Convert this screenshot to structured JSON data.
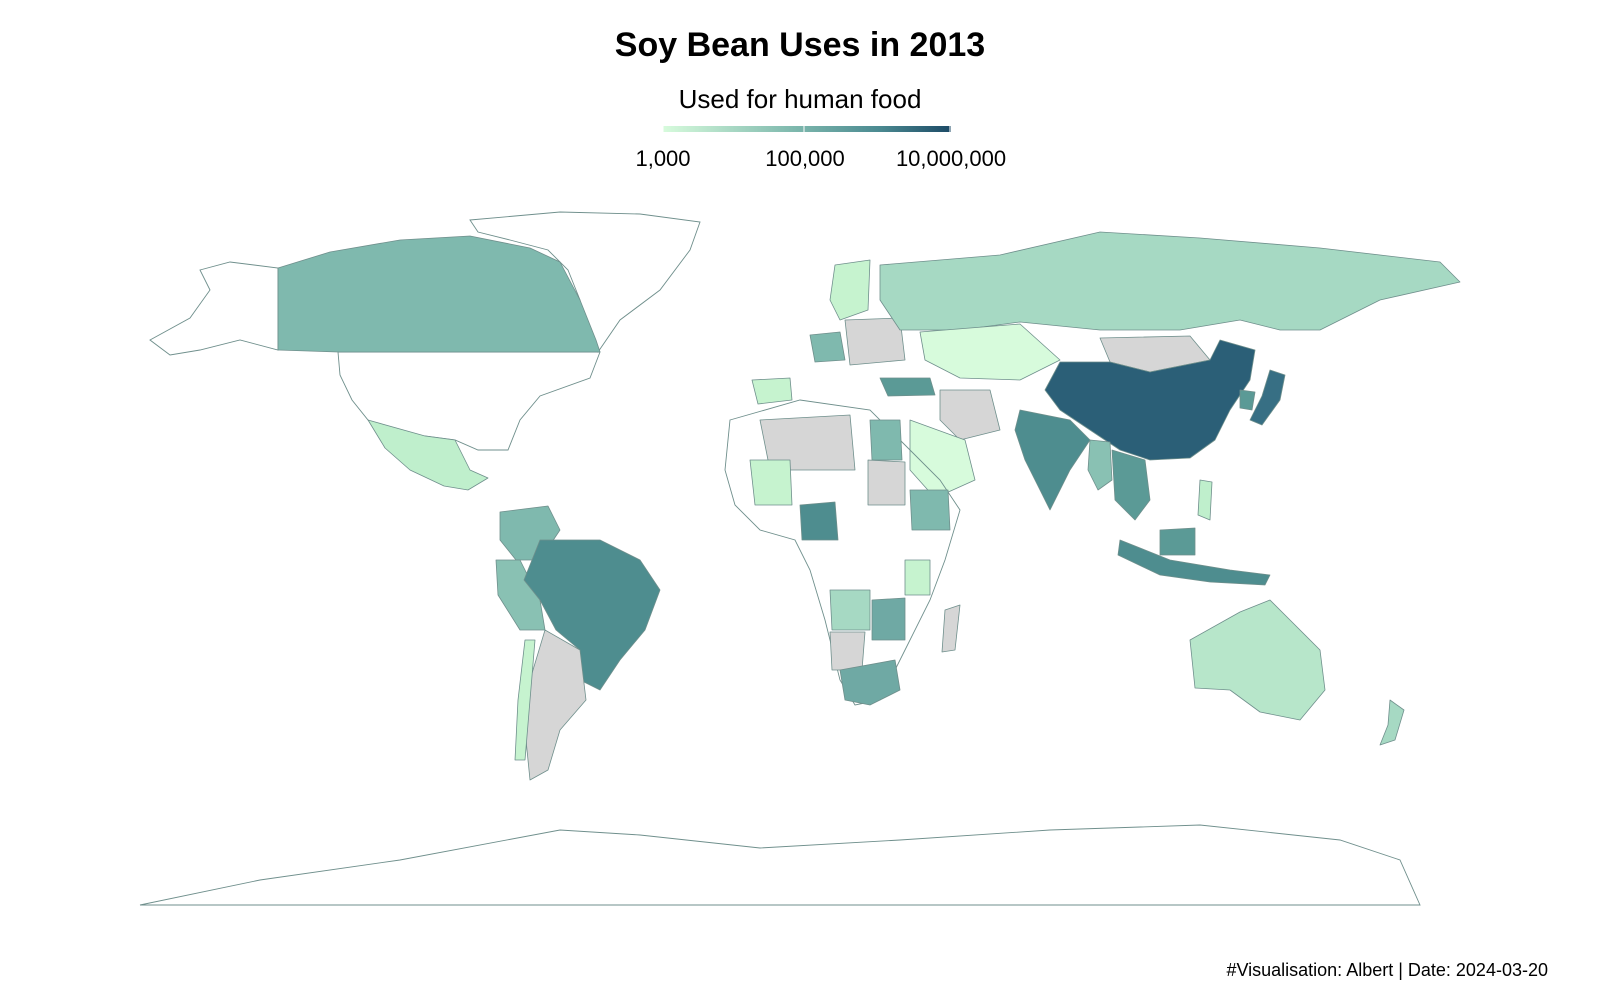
{
  "title": "Soy Bean Uses in 2013",
  "legend": {
    "title": "Used for human food",
    "scale": "log",
    "min_color": "#d7fbdc",
    "max_color": "#1c4a66",
    "ticks": [
      "1,000",
      "100,000",
      "10,000,000"
    ],
    "tick_values": [
      1000,
      100000,
      10000000
    ]
  },
  "colors": {
    "no_data": "#d6d6d6",
    "not_listed": "#ffffff",
    "border": "#6f8f8c"
  },
  "countries": [
    {
      "name": "China",
      "value": 10000000
    },
    {
      "name": "Brazil",
      "value": 600000
    },
    {
      "name": "Japan",
      "value": 900000
    },
    {
      "name": "India",
      "value": 250000
    },
    {
      "name": "Indonesia",
      "value": 350000
    },
    {
      "name": "Nigeria",
      "value": 400000
    },
    {
      "name": "Canada",
      "value": 80000
    },
    {
      "name": "South Africa",
      "value": 100000
    },
    {
      "name": "Australia",
      "value": 15000
    },
    {
      "name": "Russia",
      "value": 15000
    },
    {
      "name": "Mexico",
      "value": 4000
    },
    {
      "name": "Egypt",
      "value": 70000
    },
    {
      "name": "Turkey",
      "value": 80000
    },
    {
      "name": "Kazakhstan",
      "value": 1500
    },
    {
      "name": "Saudi Arabia",
      "value": 3000
    },
    {
      "name": "Germany",
      "value": 100000
    },
    {
      "name": "Colombia",
      "value": 40000
    },
    {
      "name": "Peru",
      "value": 30000
    },
    {
      "name": "Chile",
      "value": 2000
    },
    {
      "name": "Ethiopia",
      "value": 50000
    },
    {
      "name": "Zambia",
      "value": 15000
    },
    {
      "name": "Zimbabwe",
      "value": 120000
    },
    {
      "name": "Angola",
      "value": 15000
    },
    {
      "name": "Mali",
      "value": 4000
    },
    {
      "name": "Thailand",
      "value": 100000
    },
    {
      "name": "Vietnam",
      "value": 100000
    },
    {
      "name": "Myanmar",
      "value": 60000
    },
    {
      "name": "Philippines",
      "value": 3000
    },
    {
      "name": "South Korea",
      "value": 300000
    },
    {
      "name": "New Zealand",
      "value": 20000
    },
    {
      "name": "Tanzania",
      "value": 4000
    },
    {
      "name": "Spain",
      "value": 3000
    },
    {
      "name": "Scandinavia",
      "value": 3000
    }
  ],
  "no_data_regions": [
    "Argentina",
    "Bolivia",
    "Algeria",
    "Libya",
    "Sudan",
    "Chad",
    "Madagascar",
    "Iran",
    "Mongolia",
    "Namibia"
  ],
  "caption": "#Visualisation: Albert | Date: 2024-03-20"
}
